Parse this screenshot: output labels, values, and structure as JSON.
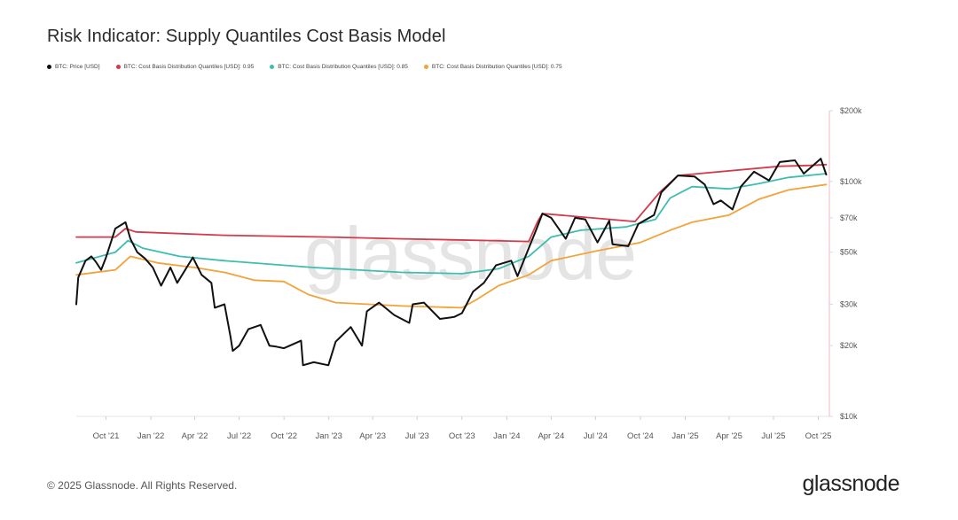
{
  "title": "Risk Indicator: Supply Quantiles Cost Basis Model",
  "watermark": "glassnode",
  "footer": "© 2025 Glassnode. All Rights Reserved.",
  "brand": "glassnode",
  "chart_data": {
    "type": "line",
    "title": "Risk Indicator: Supply Quantiles Cost Basis Model",
    "y_scale": "log",
    "ylim": [
      10000,
      200000
    ],
    "xlim": [
      "2021-08-01",
      "2025-10-20"
    ],
    "x_ticks": [
      {
        "label": "Oct '21",
        "date": "2021-10-01"
      },
      {
        "label": "Jan '22",
        "date": "2022-01-01"
      },
      {
        "label": "Apr '22",
        "date": "2022-04-01"
      },
      {
        "label": "Jul '22",
        "date": "2022-07-01"
      },
      {
        "label": "Oct '22",
        "date": "2022-10-01"
      },
      {
        "label": "Jan '23",
        "date": "2023-01-01"
      },
      {
        "label": "Apr '23",
        "date": "2023-04-01"
      },
      {
        "label": "Jul '23",
        "date": "2023-07-01"
      },
      {
        "label": "Oct '23",
        "date": "2023-10-01"
      },
      {
        "label": "Jan '24",
        "date": "2024-01-01"
      },
      {
        "label": "Apr '24",
        "date": "2024-04-01"
      },
      {
        "label": "Jul '24",
        "date": "2024-07-01"
      },
      {
        "label": "Oct '24",
        "date": "2024-10-01"
      },
      {
        "label": "Jan '25",
        "date": "2025-01-01"
      },
      {
        "label": "Apr '25",
        "date": "2025-04-01"
      },
      {
        "label": "Jul '25",
        "date": "2025-07-01"
      },
      {
        "label": "Oct '25",
        "date": "2025-10-01"
      }
    ],
    "y_ticks": [
      {
        "label": "$10k",
        "value": 10000
      },
      {
        "label": "$20k",
        "value": 20000
      },
      {
        "label": "$30k",
        "value": 30000
      },
      {
        "label": "$50k",
        "value": 50000
      },
      {
        "label": "$70k",
        "value": 70000
      },
      {
        "label": "$100k",
        "value": 100000
      },
      {
        "label": "$200k",
        "value": 200000
      }
    ],
    "legend_position": "top-left",
    "grid": false,
    "series": [
      {
        "name": "BTC: Price [USD]",
        "color": "#111111",
        "points": [
          [
            "2021-08-01",
            30000
          ],
          [
            "2021-08-05",
            39000
          ],
          [
            "2021-08-20",
            46000
          ],
          [
            "2021-09-01",
            48000
          ],
          [
            "2021-09-10",
            45500
          ],
          [
            "2021-09-21",
            42000
          ],
          [
            "2021-10-01",
            47500
          ],
          [
            "2021-10-20",
            63000
          ],
          [
            "2021-11-10",
            67000
          ],
          [
            "2021-11-20",
            57000
          ],
          [
            "2021-12-04",
            50000
          ],
          [
            "2021-12-20",
            47000
          ],
          [
            "2022-01-05",
            43000
          ],
          [
            "2022-01-22",
            36000
          ],
          [
            "2022-02-10",
            43000
          ],
          [
            "2022-02-24",
            37000
          ],
          [
            "2022-03-28",
            47500
          ],
          [
            "2022-04-15",
            40000
          ],
          [
            "2022-05-05",
            37000
          ],
          [
            "2022-05-12",
            29000
          ],
          [
            "2022-06-01",
            30000
          ],
          [
            "2022-06-13",
            22000
          ],
          [
            "2022-06-18",
            19000
          ],
          [
            "2022-07-01",
            20000
          ],
          [
            "2022-07-20",
            23500
          ],
          [
            "2022-08-14",
            24500
          ],
          [
            "2022-09-01",
            20000
          ],
          [
            "2022-09-15",
            19800
          ],
          [
            "2022-10-01",
            19500
          ],
          [
            "2022-11-05",
            21000
          ],
          [
            "2022-11-09",
            16500
          ],
          [
            "2022-12-01",
            17000
          ],
          [
            "2022-12-31",
            16500
          ],
          [
            "2023-01-15",
            20800
          ],
          [
            "2023-02-15",
            24000
          ],
          [
            "2023-03-10",
            20000
          ],
          [
            "2023-03-20",
            28000
          ],
          [
            "2023-04-14",
            30500
          ],
          [
            "2023-05-15",
            27000
          ],
          [
            "2023-06-15",
            25000
          ],
          [
            "2023-06-22",
            30000
          ],
          [
            "2023-07-15",
            30500
          ],
          [
            "2023-08-17",
            26000
          ],
          [
            "2023-09-15",
            26500
          ],
          [
            "2023-10-01",
            27500
          ],
          [
            "2023-10-24",
            34000
          ],
          [
            "2023-11-15",
            37000
          ],
          [
            "2023-12-10",
            44000
          ],
          [
            "2024-01-10",
            46000
          ],
          [
            "2024-01-23",
            39500
          ],
          [
            "2024-02-15",
            52000
          ],
          [
            "2024-03-01",
            62000
          ],
          [
            "2024-03-14",
            73000
          ],
          [
            "2024-04-01",
            70000
          ],
          [
            "2024-05-01",
            57000
          ],
          [
            "2024-05-20",
            70000
          ],
          [
            "2024-06-10",
            69000
          ],
          [
            "2024-07-05",
            55000
          ],
          [
            "2024-07-29",
            68000
          ],
          [
            "2024-08-05",
            54000
          ],
          [
            "2024-09-06",
            53000
          ],
          [
            "2024-09-27",
            66000
          ],
          [
            "2024-10-29",
            72000
          ],
          [
            "2024-11-13",
            90000
          ],
          [
            "2024-12-17",
            106000
          ],
          [
            "2025-01-20",
            105000
          ],
          [
            "2025-02-10",
            97000
          ],
          [
            "2025-02-28",
            80000
          ],
          [
            "2025-03-15",
            83000
          ],
          [
            "2025-04-08",
            76000
          ],
          [
            "2025-04-25",
            95000
          ],
          [
            "2025-05-22",
            110000
          ],
          [
            "2025-06-22",
            101000
          ],
          [
            "2025-07-14",
            121000
          ],
          [
            "2025-08-14",
            123000
          ],
          [
            "2025-09-01",
            108000
          ],
          [
            "2025-10-06",
            125000
          ],
          [
            "2025-10-17",
            107000
          ]
        ]
      },
      {
        "name": "BTC: Cost Basis Distribution Quantiles [USD]: 0.95",
        "color": "#d43a4b",
        "points": [
          [
            "2021-08-01",
            58000
          ],
          [
            "2021-10-20",
            58000
          ],
          [
            "2021-11-10",
            63000
          ],
          [
            "2021-12-01",
            61000
          ],
          [
            "2022-06-01",
            59000
          ],
          [
            "2023-01-01",
            58000
          ],
          [
            "2023-06-01",
            57000
          ],
          [
            "2023-12-01",
            56000
          ],
          [
            "2024-02-15",
            55500
          ],
          [
            "2024-03-05",
            68000
          ],
          [
            "2024-03-14",
            73000
          ],
          [
            "2024-09-20",
            67500
          ],
          [
            "2024-11-10",
            90000
          ],
          [
            "2024-12-17",
            106000
          ],
          [
            "2025-07-14",
            116000
          ],
          [
            "2025-09-15",
            117000
          ],
          [
            "2025-10-17",
            118000
          ]
        ]
      },
      {
        "name": "BTC: Cost Basis Distribution Quantiles [USD]: 0.85",
        "color": "#3ebdb0",
        "points": [
          [
            "2021-08-01",
            45000
          ],
          [
            "2021-10-20",
            50000
          ],
          [
            "2021-11-15",
            56000
          ],
          [
            "2021-12-15",
            52000
          ],
          [
            "2022-03-01",
            48000
          ],
          [
            "2022-06-01",
            46000
          ],
          [
            "2022-12-01",
            43000
          ],
          [
            "2023-06-01",
            41000
          ],
          [
            "2023-10-01",
            40500
          ],
          [
            "2023-12-15",
            42500
          ],
          [
            "2024-02-15",
            48000
          ],
          [
            "2024-04-01",
            58000
          ],
          [
            "2024-06-01",
            62000
          ],
          [
            "2024-09-01",
            64000
          ],
          [
            "2024-11-01",
            69000
          ],
          [
            "2024-12-01",
            85000
          ],
          [
            "2025-01-15",
            95000
          ],
          [
            "2025-04-01",
            93000
          ],
          [
            "2025-06-01",
            98000
          ],
          [
            "2025-08-01",
            104000
          ],
          [
            "2025-10-17",
            108000
          ]
        ]
      },
      {
        "name": "BTC: Cost Basis Distribution Quantiles [USD]: 0.75",
        "color": "#f2a33a",
        "points": [
          [
            "2021-08-01",
            40000
          ],
          [
            "2021-10-20",
            42000
          ],
          [
            "2021-11-20",
            48000
          ],
          [
            "2022-01-15",
            45000
          ],
          [
            "2022-04-01",
            43000
          ],
          [
            "2022-06-01",
            41000
          ],
          [
            "2022-08-01",
            38000
          ],
          [
            "2022-10-01",
            37500
          ],
          [
            "2022-11-20",
            33000
          ],
          [
            "2023-01-15",
            30500
          ],
          [
            "2023-06-01",
            29500
          ],
          [
            "2023-10-01",
            29000
          ],
          [
            "2023-11-01",
            31500
          ],
          [
            "2023-12-15",
            36000
          ],
          [
            "2024-02-15",
            40000
          ],
          [
            "2024-04-01",
            46000
          ],
          [
            "2024-07-01",
            50500
          ],
          [
            "2024-10-01",
            55000
          ],
          [
            "2024-12-01",
            62000
          ],
          [
            "2025-01-15",
            67000
          ],
          [
            "2025-04-01",
            72000
          ],
          [
            "2025-06-01",
            84000
          ],
          [
            "2025-08-01",
            92000
          ],
          [
            "2025-10-17",
            97000
          ]
        ]
      }
    ]
  }
}
